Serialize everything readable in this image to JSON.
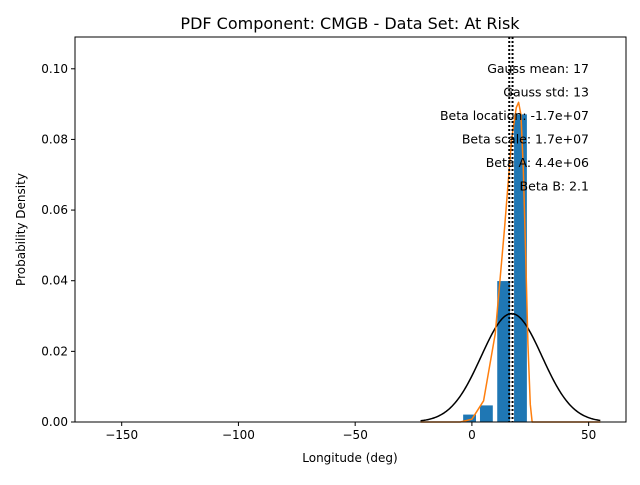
{
  "chart_data": {
    "type": "bar",
    "title": "PDF Component: CMGB - Data Set: At Risk",
    "xlabel": "Longitude (deg)",
    "ylabel": "Probability Density",
    "xlim": [
      -170,
      66
    ],
    "ylim": [
      0,
      0.109
    ],
    "xticks": [
      -150,
      -100,
      -50,
      0,
      50
    ],
    "xtick_labels": [
      "−150",
      "−100",
      "−50",
      "0",
      "50"
    ],
    "yticks": [
      0.0,
      0.02,
      0.04,
      0.06,
      0.08,
      0.1
    ],
    "ytick_labels": [
      "0.00",
      "0.02",
      "0.04",
      "0.06",
      "0.08",
      "0.10"
    ],
    "grid": false,
    "histogram": {
      "bin_width": 6.4,
      "bar_width": 5.5,
      "color": "#1f77b4",
      "bins": [
        {
          "x": -156.6,
          "height": 5e-05
        },
        {
          "x": -141.0,
          "height": 5e-05
        },
        {
          "x": -134.6,
          "height": 5e-05
        },
        {
          "x": -118.6,
          "height": 5e-05
        },
        {
          "x": -81.6,
          "height": 5e-05
        },
        {
          "x": -59.0,
          "height": 5e-05
        },
        {
          "x": -30.6,
          "height": 5e-05
        },
        {
          "x": -1.0,
          "height": 0.0021
        },
        {
          "x": 6.2,
          "height": 0.0047
        },
        {
          "x": 13.6,
          "height": 0.0399
        },
        {
          "x": 20.8,
          "height": 0.0871
        }
      ]
    },
    "gauss_curve": {
      "color": "#000000",
      "mean": 17,
      "std": 13,
      "x_range": [
        -22,
        55
      ]
    },
    "beta_curve": {
      "color": "#ff7f0e",
      "x_range": [
        -22,
        55
      ],
      "points": [
        [
          -22,
          0.0
        ],
        [
          -5,
          0.0
        ],
        [
          0,
          0.0008
        ],
        [
          5,
          0.006
        ],
        [
          10,
          0.025
        ],
        [
          14,
          0.055
        ],
        [
          17,
          0.08
        ],
        [
          19,
          0.089
        ],
        [
          20,
          0.0905
        ],
        [
          21,
          0.087
        ],
        [
          22,
          0.072
        ],
        [
          23,
          0.048
        ],
        [
          24,
          0.022
        ],
        [
          25,
          0.005
        ],
        [
          25.8,
          0.0
        ],
        [
          55,
          0.0
        ]
      ]
    },
    "vlines": [
      {
        "x": 16.0,
        "style": "dotted",
        "color": "#000000"
      },
      {
        "x": 17.4,
        "style": "dotted",
        "color": "#000000"
      }
    ],
    "annotations": [
      "Gauss mean: 17",
      "Gauss std: 13",
      "Beta location: -1.7e+07",
      "Beta scale: 1.7e+07",
      "Beta A: 4.4e+06",
      "Beta B: 2.1"
    ]
  }
}
